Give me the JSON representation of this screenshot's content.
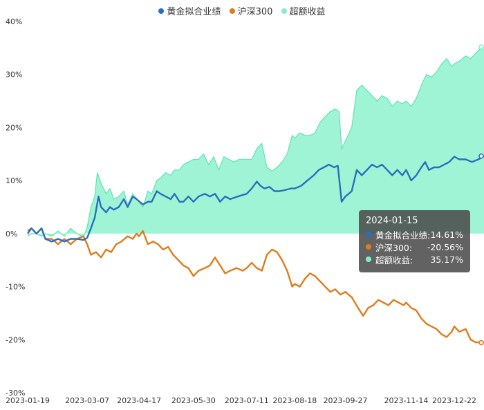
{
  "legend": [
    {
      "name": "黄金拟合业绩",
      "color": "#2a6ebb"
    },
    {
      "name": "沪深300",
      "color": "#e07b1a"
    },
    {
      "name": "超额收益",
      "color": "#7ff0c8"
    }
  ],
  "tooltip": {
    "date": "2024-01-15",
    "rows": [
      {
        "name": "黄金拟合业绩:",
        "value": "14.61%",
        "color": "#2a6ebb"
      },
      {
        "name": "沪深300:",
        "value": "-20.56%",
        "color": "#e07b1a"
      },
      {
        "name": "超额收益:",
        "value": "35.17%",
        "color": "#7ff0c8"
      }
    ]
  },
  "chart_data": {
    "type": "line",
    "y_ticks": [
      "40%",
      "30%",
      "20%",
      "10%",
      "0%",
      "-10%",
      "-20%",
      "-30%"
    ],
    "x_ticks": [
      "2023-01-19",
      "2023-03-07",
      "2023-04-17",
      "2023-05-30",
      "2023-07-11",
      "2023-08-18",
      "2023-09-27",
      "2023-11-14",
      "2023-12-22"
    ],
    "ylim": [
      -30,
      40
    ],
    "grid": false,
    "legend_position": "top-center",
    "series": [
      {
        "name": "黄金拟合业绩",
        "color": "#2a6ebb",
        "points": [
          [
            "2023-01-19",
            0
          ],
          [
            "2023-01-22",
            1
          ],
          [
            "2023-01-26",
            0
          ],
          [
            "2023-01-30",
            1
          ],
          [
            "2023-02-02",
            -1
          ],
          [
            "2023-02-07",
            -1.5
          ],
          [
            "2023-02-12",
            -1
          ],
          [
            "2023-02-17",
            -1.5
          ],
          [
            "2023-02-22",
            -1
          ],
          [
            "2023-02-27",
            -1
          ],
          [
            "2023-03-04",
            -1.2
          ],
          [
            "2023-03-07",
            -0.8
          ],
          [
            "2023-03-10",
            1
          ],
          [
            "2023-03-13",
            3
          ],
          [
            "2023-03-16",
            7
          ],
          [
            "2023-03-18",
            5
          ],
          [
            "2023-03-22",
            4
          ],
          [
            "2023-03-25",
            5
          ],
          [
            "2023-03-28",
            4.5
          ],
          [
            "2023-04-01",
            5
          ],
          [
            "2023-04-05",
            6.5
          ],
          [
            "2023-04-08",
            5
          ],
          [
            "2023-04-12",
            7
          ],
          [
            "2023-04-15",
            6.5
          ],
          [
            "2023-04-20",
            5.5
          ],
          [
            "2023-04-24",
            6
          ],
          [
            "2023-04-27",
            6
          ],
          [
            "2023-05-01",
            8
          ],
          [
            "2023-05-04",
            7.5
          ],
          [
            "2023-05-08",
            7
          ],
          [
            "2023-05-12",
            6.5
          ],
          [
            "2023-05-15",
            7.5
          ],
          [
            "2023-05-19",
            6
          ],
          [
            "2023-05-22",
            6
          ],
          [
            "2023-05-26",
            7
          ],
          [
            "2023-05-30",
            6
          ],
          [
            "2023-06-03",
            7
          ],
          [
            "2023-06-08",
            7.5
          ],
          [
            "2023-06-12",
            7
          ],
          [
            "2023-06-16",
            7.5
          ],
          [
            "2023-06-20",
            6
          ],
          [
            "2023-06-24",
            7
          ],
          [
            "2023-06-28",
            6.5
          ],
          [
            "2023-07-04",
            7
          ],
          [
            "2023-07-11",
            7.5
          ],
          [
            "2023-07-15",
            8.5
          ],
          [
            "2023-07-19",
            9.8
          ],
          [
            "2023-07-22",
            9
          ],
          [
            "2023-07-25",
            8.5
          ],
          [
            "2023-07-29",
            8.8
          ],
          [
            "2023-08-02",
            8
          ],
          [
            "2023-08-06",
            8
          ],
          [
            "2023-08-10",
            8.2
          ],
          [
            "2023-08-15",
            8.5
          ],
          [
            "2023-08-18",
            8.5
          ],
          [
            "2023-08-23",
            9
          ],
          [
            "2023-08-28",
            10
          ],
          [
            "2023-09-02",
            11
          ],
          [
            "2023-09-06",
            12
          ],
          [
            "2023-09-10",
            12.5
          ],
          [
            "2023-09-14",
            13
          ],
          [
            "2023-09-18",
            12.5
          ],
          [
            "2023-09-21",
            12.8
          ],
          [
            "2023-09-24",
            6
          ],
          [
            "2023-09-27",
            7
          ],
          [
            "2023-10-02",
            8
          ],
          [
            "2023-10-06",
            12
          ],
          [
            "2023-10-10",
            11
          ],
          [
            "2023-10-14",
            12
          ],
          [
            "2023-10-18",
            13
          ],
          [
            "2023-10-22",
            12.5
          ],
          [
            "2023-10-26",
            13
          ],
          [
            "2023-10-30",
            12
          ],
          [
            "2023-11-03",
            11
          ],
          [
            "2023-11-07",
            12
          ],
          [
            "2023-11-11",
            11
          ],
          [
            "2023-11-14",
            12
          ],
          [
            "2023-11-18",
            10
          ],
          [
            "2023-11-22",
            11
          ],
          [
            "2023-11-26",
            12.5
          ],
          [
            "2023-11-29",
            13.5
          ],
          [
            "2023-12-02",
            12
          ],
          [
            "2023-12-06",
            12.5
          ],
          [
            "2023-12-10",
            12.5
          ],
          [
            "2023-12-14",
            13
          ],
          [
            "2023-12-18",
            13.5
          ],
          [
            "2023-12-22",
            14.5
          ],
          [
            "2023-12-26",
            14
          ],
          [
            "2023-12-31",
            14
          ],
          [
            "2024-01-05",
            13.5
          ],
          [
            "2024-01-10",
            14
          ],
          [
            "2024-01-15",
            14.61
          ]
        ]
      },
      {
        "name": "沪深300",
        "color": "#e07b1a",
        "points": [
          [
            "2023-01-19",
            0.5
          ],
          [
            "2023-01-22",
            1
          ],
          [
            "2023-01-26",
            0
          ],
          [
            "2023-01-30",
            1
          ],
          [
            "2023-02-02",
            -1
          ],
          [
            "2023-02-07",
            -1
          ],
          [
            "2023-02-12",
            -2
          ],
          [
            "2023-02-17",
            -1
          ],
          [
            "2023-02-22",
            -2
          ],
          [
            "2023-02-27",
            -1
          ],
          [
            "2023-03-04",
            -0.5
          ],
          [
            "2023-03-07",
            -2
          ],
          [
            "2023-03-10",
            -4
          ],
          [
            "2023-03-14",
            -3.5
          ],
          [
            "2023-03-18",
            -4.5
          ],
          [
            "2023-03-22",
            -3
          ],
          [
            "2023-03-26",
            -3.5
          ],
          [
            "2023-03-30",
            -2
          ],
          [
            "2023-04-03",
            -1.5
          ],
          [
            "2023-04-08",
            -0.5
          ],
          [
            "2023-04-12",
            -1
          ],
          [
            "2023-04-15",
            0
          ],
          [
            "2023-04-17",
            -0.5
          ],
          [
            "2023-04-20",
            0.5
          ],
          [
            "2023-04-24",
            -2
          ],
          [
            "2023-04-28",
            -1.5
          ],
          [
            "2023-05-02",
            -2
          ],
          [
            "2023-05-06",
            -3
          ],
          [
            "2023-05-10",
            -2.5
          ],
          [
            "2023-05-14",
            -4
          ],
          [
            "2023-05-18",
            -5
          ],
          [
            "2023-05-22",
            -6
          ],
          [
            "2023-05-26",
            -6.5
          ],
          [
            "2023-05-30",
            -8
          ],
          [
            "2023-06-03",
            -7
          ],
          [
            "2023-06-08",
            -6.5
          ],
          [
            "2023-06-12",
            -6
          ],
          [
            "2023-06-16",
            -4.5
          ],
          [
            "2023-06-20",
            -6
          ],
          [
            "2023-06-24",
            -7.5
          ],
          [
            "2023-06-28",
            -7
          ],
          [
            "2023-07-03",
            -6.5
          ],
          [
            "2023-07-08",
            -7
          ],
          [
            "2023-07-11",
            -6.5
          ],
          [
            "2023-07-15",
            -5.5
          ],
          [
            "2023-07-19",
            -6.5
          ],
          [
            "2023-07-23",
            -7
          ],
          [
            "2023-07-27",
            -4
          ],
          [
            "2023-07-31",
            -3
          ],
          [
            "2023-08-04",
            -3.5
          ],
          [
            "2023-08-08",
            -5
          ],
          [
            "2023-08-12",
            -7
          ],
          [
            "2023-08-16",
            -10
          ],
          [
            "2023-08-18",
            -9.5
          ],
          [
            "2023-08-22",
            -10
          ],
          [
            "2023-08-26",
            -8.5
          ],
          [
            "2023-08-30",
            -7.5
          ],
          [
            "2023-09-03",
            -8
          ],
          [
            "2023-09-07",
            -9
          ],
          [
            "2023-09-11",
            -10
          ],
          [
            "2023-09-15",
            -11
          ],
          [
            "2023-09-19",
            -10.5
          ],
          [
            "2023-09-23",
            -11.5
          ],
          [
            "2023-09-27",
            -11
          ],
          [
            "2023-10-02",
            -12
          ],
          [
            "2023-10-07",
            -14
          ],
          [
            "2023-10-11",
            -15.5
          ],
          [
            "2023-10-15",
            -14
          ],
          [
            "2023-10-19",
            -13.5
          ],
          [
            "2023-10-23",
            -12.5
          ],
          [
            "2023-10-27",
            -13
          ],
          [
            "2023-10-31",
            -13.5
          ],
          [
            "2023-11-04",
            -12.5
          ],
          [
            "2023-11-08",
            -13
          ],
          [
            "2023-11-12",
            -13.5
          ],
          [
            "2023-11-14",
            -13
          ],
          [
            "2023-11-18",
            -14
          ],
          [
            "2023-11-22",
            -14.5
          ],
          [
            "2023-11-26",
            -16
          ],
          [
            "2023-11-30",
            -17
          ],
          [
            "2023-12-04",
            -17.5
          ],
          [
            "2023-12-08",
            -18
          ],
          [
            "2023-12-12",
            -19
          ],
          [
            "2023-12-16",
            -19.5
          ],
          [
            "2023-12-20",
            -18.5
          ],
          [
            "2023-12-22",
            -17.5
          ],
          [
            "2023-12-26",
            -18.5
          ],
          [
            "2023-12-31",
            -18
          ],
          [
            "2024-01-04",
            -20
          ],
          [
            "2024-01-08",
            -20.5
          ],
          [
            "2024-01-12",
            -20.5
          ],
          [
            "2024-01-15",
            -20.56
          ]
        ]
      },
      {
        "name": "超额收益",
        "color": "#7ff0c8",
        "points": [
          [
            "2023-01-19",
            -0.5
          ],
          [
            "2023-01-22",
            0
          ],
          [
            "2023-01-26",
            0
          ],
          [
            "2023-01-30",
            -0.5
          ],
          [
            "2023-02-02",
            0
          ],
          [
            "2023-02-07",
            -0.5
          ],
          [
            "2023-02-12",
            0.5
          ],
          [
            "2023-02-17",
            -0.5
          ],
          [
            "2023-02-22",
            1
          ],
          [
            "2023-02-27",
            0
          ],
          [
            "2023-03-04",
            -0.7
          ],
          [
            "2023-03-07",
            1.2
          ],
          [
            "2023-03-10",
            5
          ],
          [
            "2023-03-13",
            7
          ],
          [
            "2023-03-15",
            11.5
          ],
          [
            "2023-03-18",
            9.5
          ],
          [
            "2023-03-22",
            7.5
          ],
          [
            "2023-03-25",
            8.5
          ],
          [
            "2023-03-28",
            6.5
          ],
          [
            "2023-04-01",
            7
          ],
          [
            "2023-04-05",
            8
          ],
          [
            "2023-04-08",
            5.5
          ],
          [
            "2023-04-12",
            7.5
          ],
          [
            "2023-04-17",
            6
          ],
          [
            "2023-04-20",
            5
          ],
          [
            "2023-04-24",
            8
          ],
          [
            "2023-04-27",
            7.5
          ],
          [
            "2023-05-01",
            10
          ],
          [
            "2023-05-04",
            10.5
          ],
          [
            "2023-05-08",
            11.5
          ],
          [
            "2023-05-12",
            11
          ],
          [
            "2023-05-15",
            12
          ],
          [
            "2023-05-19",
            12
          ],
          [
            "2023-05-22",
            13
          ],
          [
            "2023-05-26",
            13.5
          ],
          [
            "2023-05-30",
            14
          ],
          [
            "2023-06-03",
            14
          ],
          [
            "2023-06-07",
            15
          ],
          [
            "2023-06-11",
            13
          ],
          [
            "2023-06-15",
            14.5
          ],
          [
            "2023-06-19",
            12
          ],
          [
            "2023-06-23",
            14.5
          ],
          [
            "2023-06-27",
            14
          ],
          [
            "2023-07-01",
            13.5
          ],
          [
            "2023-07-05",
            14
          ],
          [
            "2023-07-11",
            14
          ],
          [
            "2023-07-15",
            14
          ],
          [
            "2023-07-19",
            16
          ],
          [
            "2023-07-23",
            17
          ],
          [
            "2023-07-27",
            12.5
          ],
          [
            "2023-07-31",
            11.8
          ],
          [
            "2023-08-04",
            12.5
          ],
          [
            "2023-08-08",
            13.5
          ],
          [
            "2023-08-12",
            15
          ],
          [
            "2023-08-16",
            18.5
          ],
          [
            "2023-08-18",
            18
          ],
          [
            "2023-08-22",
            19
          ],
          [
            "2023-08-26",
            18.5
          ],
          [
            "2023-08-30",
            18.5
          ],
          [
            "2023-09-03",
            19
          ],
          [
            "2023-09-07",
            21
          ],
          [
            "2023-09-11",
            22
          ],
          [
            "2023-09-15",
            23
          ],
          [
            "2023-09-19",
            23.5
          ],
          [
            "2023-09-22",
            23
          ],
          [
            "2023-09-24",
            16
          ],
          [
            "2023-09-27",
            17.5
          ],
          [
            "2023-10-02",
            20
          ],
          [
            "2023-10-06",
            27
          ],
          [
            "2023-10-10",
            28
          ],
          [
            "2023-10-14",
            27
          ],
          [
            "2023-10-18",
            26
          ],
          [
            "2023-10-22",
            25
          ],
          [
            "2023-10-26",
            26
          ],
          [
            "2023-10-30",
            25.5
          ],
          [
            "2023-11-03",
            24
          ],
          [
            "2023-11-07",
            25
          ],
          [
            "2023-11-11",
            24.5
          ],
          [
            "2023-11-14",
            25
          ],
          [
            "2023-11-18",
            24
          ],
          [
            "2023-11-22",
            25.5
          ],
          [
            "2023-11-26",
            28
          ],
          [
            "2023-11-30",
            30
          ],
          [
            "2023-12-04",
            29.5
          ],
          [
            "2023-12-08",
            30.5
          ],
          [
            "2023-12-12",
            32
          ],
          [
            "2023-12-16",
            33
          ],
          [
            "2023-12-20",
            31.5
          ],
          [
            "2023-12-22",
            32
          ],
          [
            "2023-12-26",
            32.5
          ],
          [
            "2023-12-31",
            33.5
          ],
          [
            "2024-01-04",
            33
          ],
          [
            "2024-01-08",
            34
          ],
          [
            "2024-01-12",
            35
          ],
          [
            "2024-01-15",
            35.17
          ]
        ]
      }
    ]
  }
}
